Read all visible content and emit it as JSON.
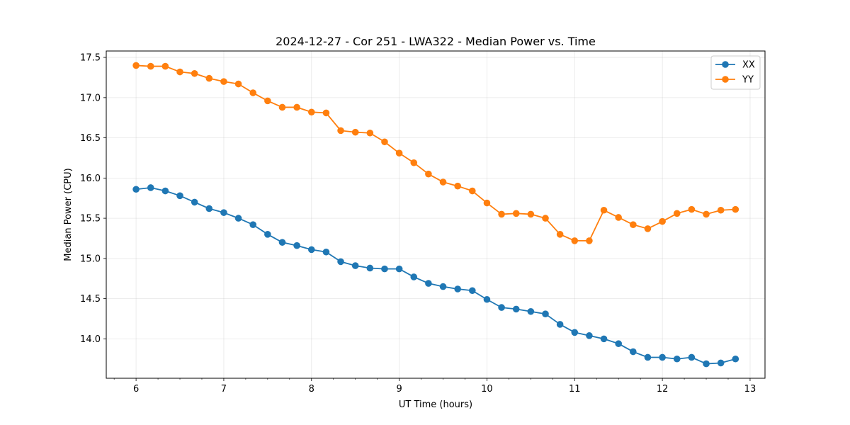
{
  "chart_data": {
    "type": "line",
    "title": "2024-12-27 - Cor 251 - LWA322 - Median Power vs. Time",
    "xlabel": "UT Time (hours)",
    "ylabel": "Median Power (CPU)",
    "xlim": [
      5.66,
      13.17
    ],
    "ylim": [
      13.51,
      17.58
    ],
    "xticks": [
      6,
      7,
      8,
      9,
      10,
      11,
      12,
      13
    ],
    "xtick_labels": [
      "6",
      "7",
      "8",
      "9",
      "10",
      "11",
      "12",
      "13"
    ],
    "xminor_step": 0.25,
    "yticks": [
      14.0,
      14.5,
      15.0,
      15.5,
      16.0,
      16.5,
      17.0,
      17.5
    ],
    "ytick_labels": [
      "14.0",
      "14.5",
      "15.0",
      "15.5",
      "16.0",
      "16.5",
      "17.0",
      "17.5"
    ],
    "grid": true,
    "legend_position": "top-right",
    "x": [
      6.0,
      6.1667,
      6.3333,
      6.5,
      6.6667,
      6.8333,
      7.0,
      7.1667,
      7.3333,
      7.5,
      7.6667,
      7.8333,
      8.0,
      8.1667,
      8.3333,
      8.5,
      8.6667,
      8.8333,
      9.0,
      9.1667,
      9.3333,
      9.5,
      9.6667,
      9.8333,
      10.0,
      10.1667,
      10.3333,
      10.5,
      10.6667,
      10.8333,
      11.0,
      11.1667,
      11.3333,
      11.5,
      11.6667,
      11.8333,
      12.0,
      12.1667,
      12.3333,
      12.5,
      12.6667,
      12.8333
    ],
    "series": [
      {
        "name": "XX",
        "color": "#1f77b4",
        "values": [
          15.86,
          15.88,
          15.84,
          15.78,
          15.7,
          15.62,
          15.57,
          15.5,
          15.42,
          15.3,
          15.2,
          15.16,
          15.11,
          15.08,
          14.96,
          14.91,
          14.88,
          14.87,
          14.87,
          14.77,
          14.69,
          14.65,
          14.62,
          14.6,
          14.49,
          14.39,
          14.37,
          14.34,
          14.31,
          14.18,
          14.08,
          14.04,
          14.0,
          13.94,
          13.84,
          13.77,
          13.77,
          13.75,
          13.77,
          13.69,
          13.7,
          13.75
        ]
      },
      {
        "name": "YY",
        "color": "#ff7f0e",
        "values": [
          17.4,
          17.39,
          17.39,
          17.32,
          17.3,
          17.24,
          17.2,
          17.17,
          17.06,
          16.96,
          16.88,
          16.88,
          16.82,
          16.81,
          16.59,
          16.57,
          16.56,
          16.45,
          16.31,
          16.19,
          16.05,
          15.95,
          15.9,
          15.84,
          15.69,
          15.55,
          15.56,
          15.55,
          15.5,
          15.3,
          15.22,
          15.22,
          15.6,
          15.51,
          15.42,
          15.37,
          15.46,
          15.56,
          15.61,
          15.55,
          15.6,
          15.61
        ]
      }
    ]
  }
}
